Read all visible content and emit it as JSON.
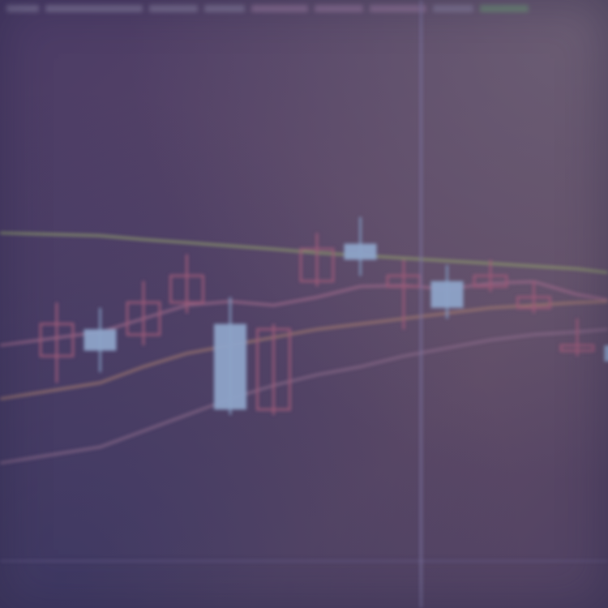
{
  "chart_data": {
    "type": "candlestick",
    "title": "",
    "xlabel": "",
    "ylabel": "",
    "ylim": [
      0,
      100
    ],
    "grid": false,
    "candles": [
      {
        "x": 0,
        "open": 44,
        "close": 38,
        "high": 48,
        "low": 33
      },
      {
        "x": 1,
        "open": 39,
        "close": 43,
        "high": 47,
        "low": 35
      },
      {
        "x": 2,
        "open": 48,
        "close": 42,
        "high": 52,
        "low": 40
      },
      {
        "x": 3,
        "open": 53,
        "close": 48,
        "high": 57,
        "low": 46
      },
      {
        "x": 4,
        "open": 28,
        "close": 44,
        "high": 49,
        "low": 27
      },
      {
        "x": 5,
        "open": 43,
        "close": 28,
        "high": 44,
        "low": 27
      },
      {
        "x": 6,
        "open": 58,
        "close": 52,
        "high": 61,
        "low": 51
      },
      {
        "x": 7,
        "open": 56,
        "close": 59,
        "high": 64,
        "low": 53
      },
      {
        "x": 8,
        "open": 53,
        "close": 51,
        "high": 56,
        "low": 43
      },
      {
        "x": 9,
        "open": 47,
        "close": 52,
        "high": 55,
        "low": 45
      },
      {
        "x": 10,
        "open": 53,
        "close": 51,
        "high": 56,
        "low": 50
      },
      {
        "x": 11,
        "open": 49,
        "close": 47,
        "high": 52,
        "low": 46
      },
      {
        "x": 12,
        "open": 40,
        "close": 39,
        "high": 45,
        "low": 38
      },
      {
        "x": 13,
        "open": 37,
        "close": 40,
        "high": 42,
        "low": 32
      }
    ],
    "series": [
      {
        "type": "line",
        "color": "#8e9a6c",
        "values": [
          61,
          60.5,
          59.8,
          59.2,
          58.6,
          58.0,
          57.3,
          56.8,
          56.3,
          55.8,
          55.3,
          54.8,
          54.3,
          53.6
        ]
      },
      {
        "type": "line",
        "color": "#9e6a8a",
        "values": [
          40,
          42.5,
          45,
          47.5,
          48.2,
          47.5,
          49,
          51,
          51.2,
          50.5,
          51.6,
          51.9,
          49.5,
          48.5
        ]
      },
      {
        "type": "line",
        "color": "#a27a70",
        "values": [
          30,
          33,
          36,
          38.5,
          40,
          41.5,
          43,
          44,
          45,
          46,
          47,
          47.5,
          48,
          48.2
        ]
      },
      {
        "type": "line",
        "color": "#8a6a88",
        "values": [
          18,
          21,
          24,
          27,
          30,
          32.5,
          34.5,
          36,
          38,
          39.5,
          41,
          42,
          42.5,
          43
        ]
      }
    ],
    "crosshair_x": 8.4
  }
}
